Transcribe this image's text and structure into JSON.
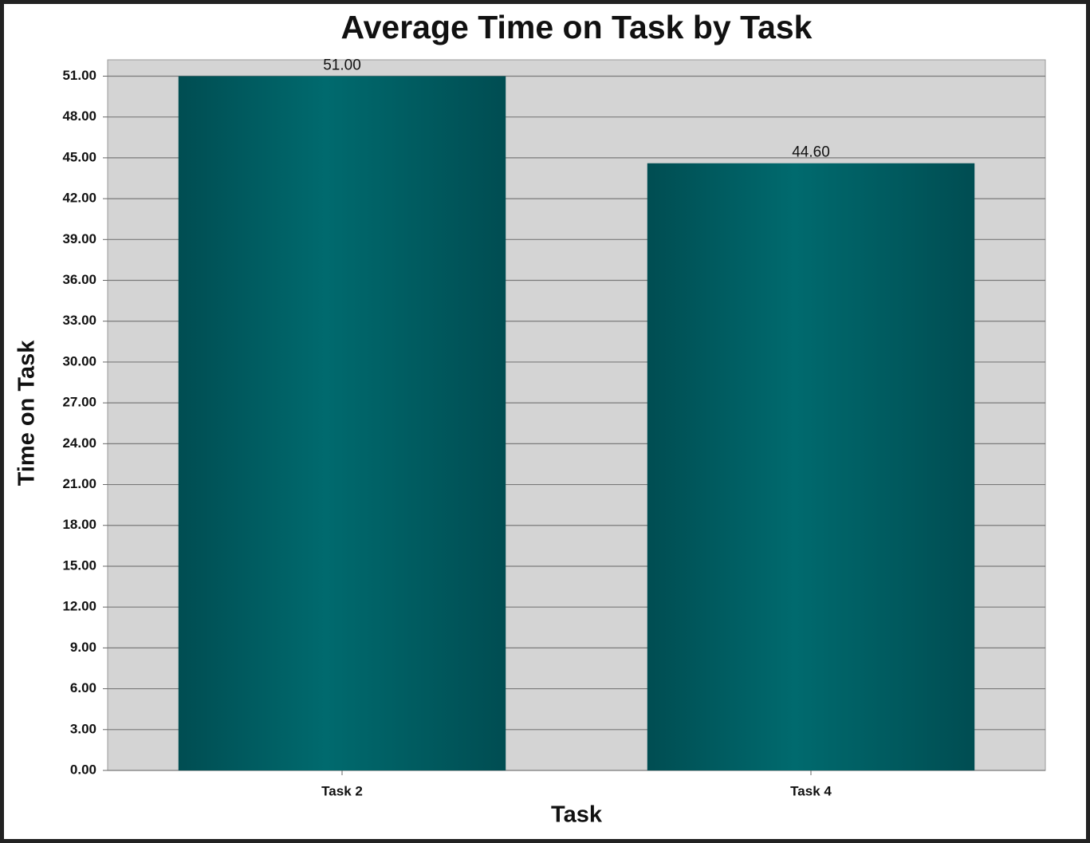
{
  "chart_data": {
    "type": "bar",
    "title": "Average Time on Task by Task",
    "x_label": "Task",
    "y_label": "Time on Task",
    "categories": [
      "Task 2",
      "Task 4"
    ],
    "values": [
      51.0,
      44.6
    ],
    "value_labels": [
      "51.00",
      "44.60"
    ],
    "color": "#006a6e",
    "ylim": [
      0,
      52.2
    ],
    "yticks": [
      {
        "value": 0,
        "label": "0.00"
      },
      {
        "value": 3,
        "label": "3.00"
      },
      {
        "value": 6,
        "label": "6.00"
      },
      {
        "value": 9,
        "label": "9.00"
      },
      {
        "value": 12,
        "label": "12.00"
      },
      {
        "value": 15,
        "label": "15.00"
      },
      {
        "value": 18,
        "label": "18.00"
      },
      {
        "value": 21,
        "label": "21.00"
      },
      {
        "value": 24,
        "label": "24.00"
      },
      {
        "value": 27,
        "label": "27.00"
      },
      {
        "value": 30,
        "label": "30.00"
      },
      {
        "value": 33,
        "label": "33.00"
      },
      {
        "value": 36,
        "label": "36.00"
      },
      {
        "value": 39,
        "label": "39.00"
      },
      {
        "value": 42,
        "label": "42.00"
      },
      {
        "value": 45,
        "label": "45.00"
      },
      {
        "value": 48,
        "label": "48.00"
      },
      {
        "value": 51,
        "label": "51.00"
      }
    ],
    "grid": true
  }
}
